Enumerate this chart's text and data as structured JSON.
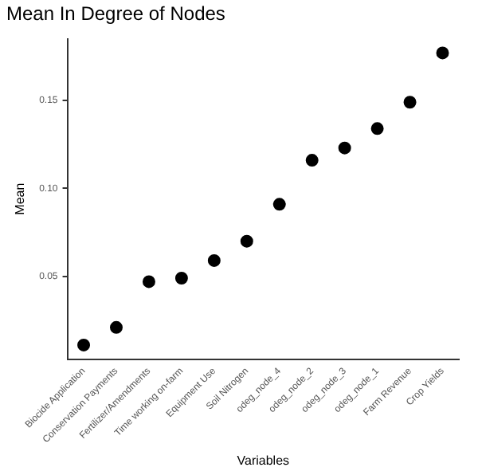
{
  "chart_data": {
    "type": "scatter",
    "title": "Mean In Degree of Nodes",
    "xlabel": "Variables",
    "ylabel": "Mean",
    "categories": [
      "Biocide Application",
      "Conservation Payments",
      "Fertilizer/Amendments",
      "Time working on-farm",
      "Equipment Use",
      "Soil Nitrogen",
      "odeg_node_4",
      "odeg_node_2",
      "odeg_node_3",
      "odeg_node_1",
      "Farm Revenue",
      "Crop Yields"
    ],
    "series": [
      {
        "color": "#000000",
        "values": [
          0.011,
          0.021,
          0.047,
          0.049,
          0.059,
          0.07,
          0.091,
          0.116,
          0.123,
          0.134,
          0.149,
          0.177
        ]
      }
    ],
    "ylim": [
      0.003,
      0.185
    ],
    "yticks": [
      {
        "value": 0.05,
        "label": "0.05"
      },
      {
        "value": 0.1,
        "label": "0.10"
      },
      {
        "value": 0.15,
        "label": "0.15"
      }
    ],
    "grid": false,
    "legend": false,
    "marker": "circle"
  }
}
